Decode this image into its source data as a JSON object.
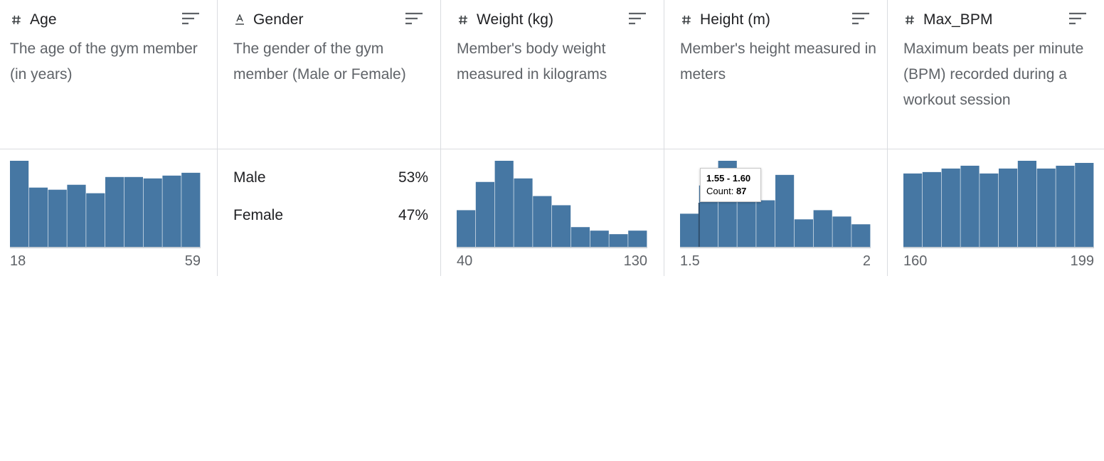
{
  "colors": {
    "bar": "#4677a3",
    "bar_highlight": "#3d6c96",
    "baseline": "#c9cfd6"
  },
  "columns": [
    {
      "type_icon": "numeric-icon",
      "name": "Age",
      "description": "The age of the gym member (in years)",
      "histogram": {
        "counts": [
          122,
          84,
          81,
          88,
          76,
          99,
          99,
          97,
          101,
          105
        ],
        "min_label": "18",
        "max_label": "59"
      }
    },
    {
      "type_icon": "string-icon",
      "name": "Gender",
      "description": "The gender of the gym member (Male or Female)",
      "categories": [
        {
          "label": "Male",
          "percent": "53%"
        },
        {
          "label": "Female",
          "percent": "47%"
        }
      ]
    },
    {
      "type_icon": "numeric-icon",
      "name": "Weight (kg)",
      "description": "Member's body weight measured in kilograms",
      "histogram": {
        "counts": [
          52,
          92,
          122,
          97,
          72,
          59,
          28,
          23,
          18,
          23
        ],
        "min_label": "40",
        "max_label": "130"
      }
    },
    {
      "type_icon": "numeric-icon",
      "name": "Height (m)",
      "description": "Member's height measured in meters",
      "histogram": {
        "counts": [
          47,
          87,
          122,
          94,
          66,
          102,
          39,
          52,
          43,
          32
        ],
        "min_label": "1.5",
        "max_label": "2"
      },
      "tooltip": {
        "range": "1.55 - 1.60",
        "count_label": "Count:",
        "count": "87"
      }
    },
    {
      "type_icon": "numeric-icon",
      "name": "Max_BPM",
      "description": "Maximum beats per minute (BPM) recorded during a workout session",
      "histogram": {
        "counts": [
          104,
          106,
          111,
          115,
          104,
          111,
          122,
          111,
          115,
          119
        ],
        "min_label": "160",
        "max_label": "199"
      }
    }
  ]
}
